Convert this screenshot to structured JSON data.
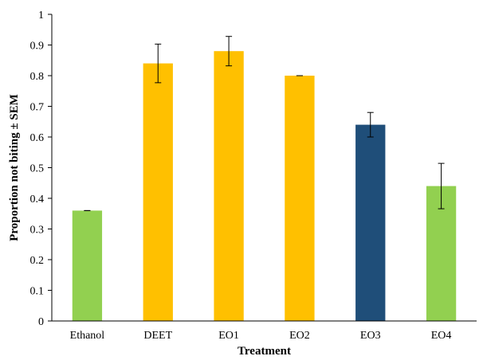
{
  "chart_data": {
    "type": "bar",
    "title": "",
    "xlabel": "Treatment",
    "ylabel": "Proportion not biting ± SEM",
    "ylim": [
      0,
      1
    ],
    "yticks": [
      0,
      0.1,
      0.2,
      0.3,
      0.4,
      0.5,
      0.6,
      0.7,
      0.8,
      0.9,
      1
    ],
    "ytick_labels": [
      "0",
      "0.1",
      "0.2",
      "0.3",
      "0.4",
      "0.5",
      "0.6",
      "0.7",
      "0.8",
      "0.9",
      "1"
    ],
    "grid": false,
    "legend": "none",
    "categories": [
      "Ethanol",
      "DEET",
      "EO1",
      "EO2",
      "EO3",
      "EO4"
    ],
    "values": [
      0.36,
      0.84,
      0.88,
      0.8,
      0.64,
      0.44
    ],
    "errors": [
      0.0,
      0.063,
      0.048,
      0.0,
      0.04,
      0.074
    ],
    "colors": [
      "#92d050",
      "#ffc000",
      "#ffc000",
      "#ffc000",
      "#1f4e79",
      "#92d050"
    ]
  }
}
